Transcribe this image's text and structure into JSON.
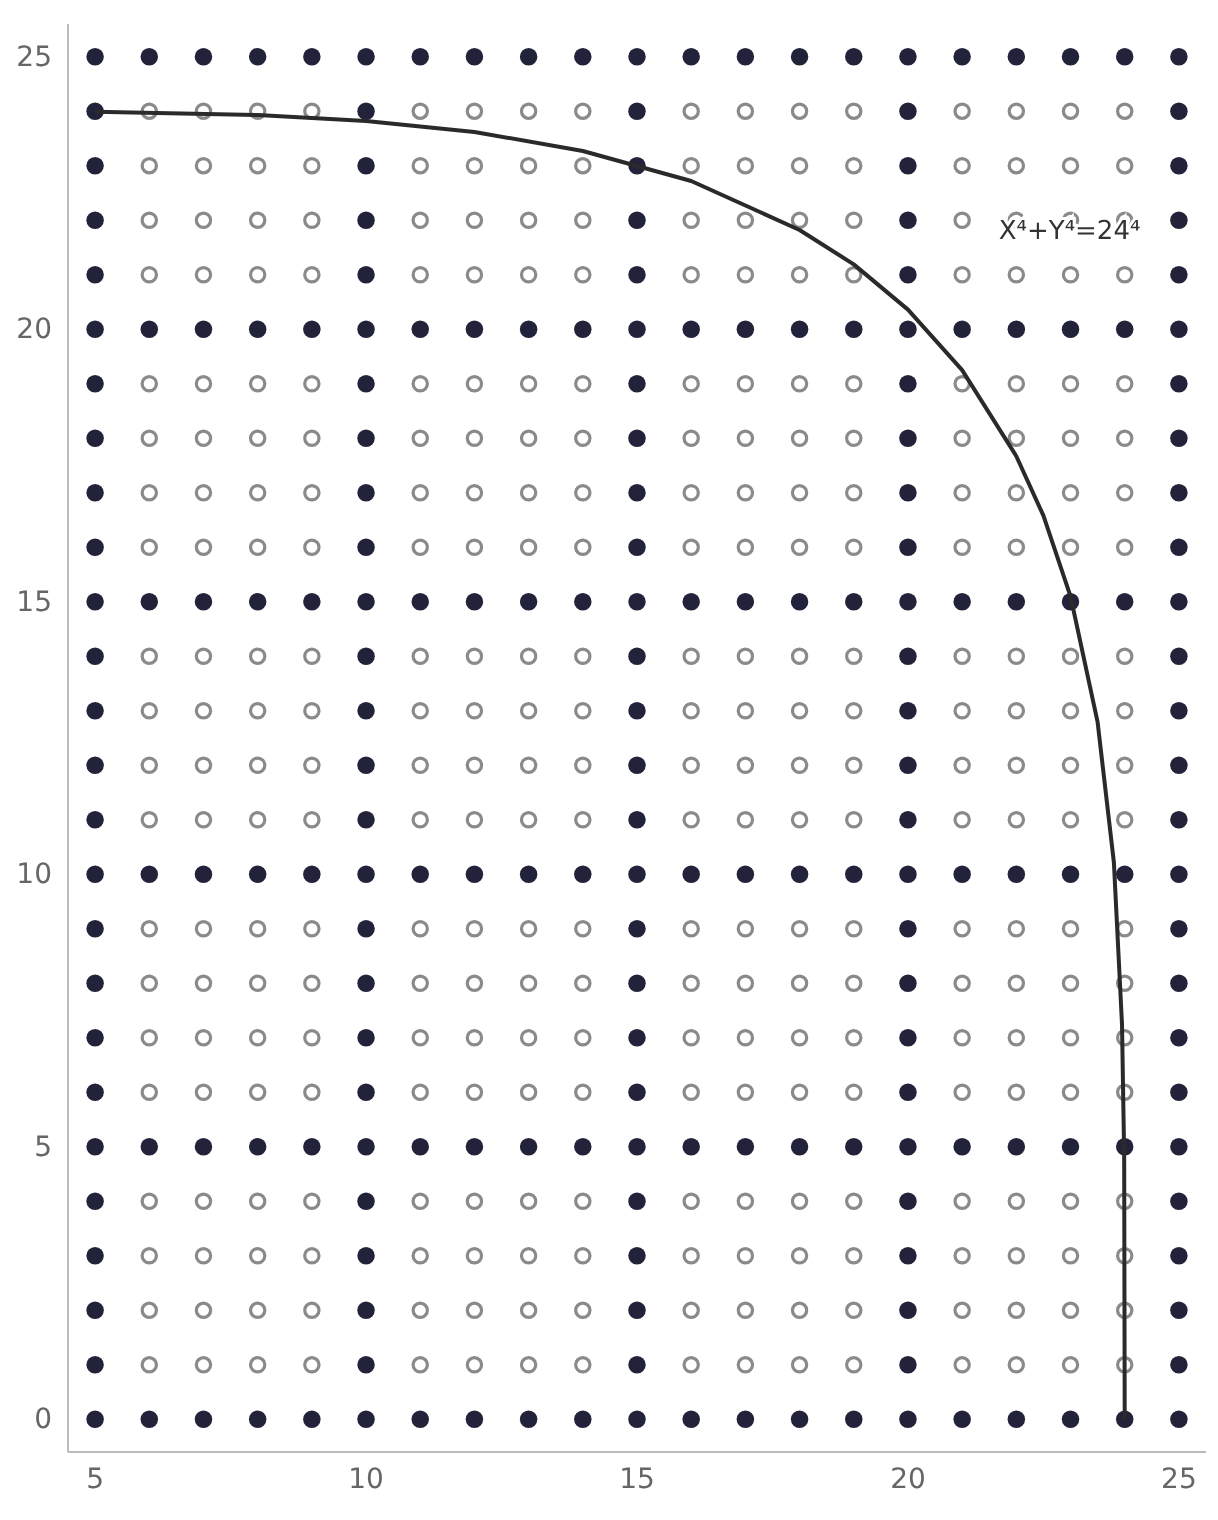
{
  "chart_data": {
    "type": "scatter",
    "xlim": [
      4.5,
      25.5
    ],
    "ylim": [
      -0.6,
      25.6
    ],
    "xticks": [
      5,
      10,
      15,
      20,
      25
    ],
    "yticks": [
      0,
      5,
      10,
      15,
      20,
      25
    ],
    "marker": "circle",
    "grid": false,
    "annotations": [
      "X⁴+Y⁴=24⁴"
    ],
    "series": [
      {
        "color": "#22223a",
        "x": [
          5,
          6,
          7,
          8,
          9,
          10,
          11,
          12,
          13,
          14,
          15,
          16,
          17,
          18,
          19,
          20,
          21,
          22,
          23,
          24,
          25,
          5,
          6,
          7,
          8,
          9,
          10,
          11,
          12,
          13,
          14,
          15,
          16,
          17,
          18,
          19,
          20,
          21,
          22,
          23,
          24,
          25,
          5,
          6,
          7,
          8,
          9,
          10,
          11,
          12,
          13,
          14,
          15,
          16,
          17,
          18,
          19,
          20,
          21,
          22,
          23,
          24,
          25,
          5,
          6,
          7,
          8,
          9,
          10,
          11,
          12,
          13,
          14,
          15,
          16,
          17,
          18,
          19,
          20,
          21,
          22,
          23,
          24,
          25,
          5,
          6,
          7,
          8,
          9,
          10,
          11,
          12,
          13,
          14,
          15,
          16,
          17,
          18,
          19,
          20,
          21,
          22,
          23,
          24,
          25,
          5,
          6,
          7,
          8,
          9,
          10,
          11,
          12,
          13,
          14,
          15,
          16,
          17,
          18,
          19,
          20,
          21,
          22,
          23,
          24,
          25,
          5,
          10,
          15,
          20,
          25,
          5,
          10,
          15,
          20,
          25,
          5,
          10,
          15,
          20,
          25,
          5,
          10,
          15,
          20,
          25,
          5,
          10,
          15,
          20,
          25,
          5,
          10,
          15,
          20,
          25,
          5,
          10,
          15,
          20,
          25,
          5,
          10,
          15,
          20,
          25,
          5,
          10,
          15,
          20,
          25,
          5,
          10,
          15,
          20,
          25,
          5,
          10,
          15,
          20,
          25,
          5,
          10,
          15,
          20,
          25,
          5,
          10,
          15,
          20,
          25,
          5,
          10,
          15,
          20,
          25,
          5,
          10,
          15,
          20,
          25,
          5,
          10,
          15,
          20,
          25,
          5,
          10,
          15,
          20,
          25,
          5,
          10,
          15,
          20,
          25,
          5,
          10,
          15,
          20,
          25,
          5,
          10,
          15,
          20,
          25
        ],
        "values": [
          0,
          0,
          0,
          0,
          0,
          0,
          0,
          0,
          0,
          0,
          0,
          0,
          0,
          0,
          0,
          0,
          0,
          0,
          0,
          0,
          0,
          5,
          5,
          5,
          5,
          5,
          5,
          5,
          5,
          5,
          5,
          5,
          5,
          5,
          5,
          5,
          5,
          5,
          5,
          5,
          5,
          5,
          10,
          10,
          10,
          10,
          10,
          10,
          10,
          10,
          10,
          10,
          10,
          10,
          10,
          10,
          10,
          10,
          10,
          10,
          10,
          10,
          10,
          15,
          15,
          15,
          15,
          15,
          15,
          15,
          15,
          15,
          15,
          15,
          15,
          15,
          15,
          15,
          15,
          15,
          15,
          15,
          15,
          15,
          20,
          20,
          20,
          20,
          20,
          20,
          20,
          20,
          20,
          20,
          20,
          20,
          20,
          20,
          20,
          20,
          20,
          20,
          20,
          20,
          20,
          25,
          25,
          25,
          25,
          25,
          25,
          25,
          25,
          25,
          25,
          25,
          25,
          25,
          25,
          25,
          25,
          25,
          25,
          25,
          25,
          25,
          1,
          1,
          1,
          1,
          1,
          2,
          2,
          2,
          2,
          2,
          3,
          3,
          3,
          3,
          3,
          4,
          4,
          4,
          4,
          4,
          6,
          6,
          6,
          6,
          6,
          7,
          7,
          7,
          7,
          7,
          8,
          8,
          8,
          8,
          8,
          9,
          9,
          9,
          9,
          9,
          11,
          11,
          11,
          11,
          11,
          12,
          12,
          12,
          12,
          12,
          13,
          13,
          13,
          13,
          13,
          14,
          14,
          14,
          14,
          14,
          16,
          16,
          16,
          16,
          16,
          17,
          17,
          17,
          17,
          17,
          18,
          18,
          18,
          18,
          18,
          19,
          19,
          19,
          19,
          19,
          21,
          21,
          21,
          21,
          21,
          22,
          22,
          22,
          22,
          22,
          23,
          23,
          23,
          23,
          23,
          24,
          24,
          24,
          24,
          24
        ]
      },
      {
        "color": "#8a8a8a",
        "x": [
          6,
          7,
          8,
          9,
          11,
          12,
          13,
          14,
          16,
          17,
          18,
          19,
          21,
          22,
          23,
          24,
          6,
          7,
          8,
          9,
          11,
          12,
          13,
          14,
          16,
          17,
          18,
          19,
          21,
          22,
          23,
          24,
          6,
          7,
          8,
          9,
          11,
          12,
          13,
          14,
          16,
          17,
          18,
          19,
          21,
          22,
          23,
          24,
          6,
          7,
          8,
          9,
          11,
          12,
          13,
          14,
          16,
          17,
          18,
          19,
          21,
          22,
          23,
          24,
          6,
          7,
          8,
          9,
          11,
          12,
          13,
          14,
          16,
          17,
          18,
          19,
          21,
          22,
          23,
          24,
          6,
          7,
          8,
          9,
          11,
          12,
          13,
          14,
          16,
          17,
          18,
          19,
          21,
          22,
          23,
          24,
          6,
          7,
          8,
          9,
          11,
          12,
          13,
          14,
          16,
          17,
          18,
          19,
          21,
          22,
          23,
          24,
          6,
          7,
          8,
          9,
          11,
          12,
          13,
          14,
          16,
          17,
          18,
          19,
          21,
          22,
          23,
          24,
          6,
          7,
          8,
          9,
          11,
          12,
          13,
          14,
          16,
          17,
          18,
          19,
          21,
          22,
          23,
          24,
          6,
          7,
          8,
          9,
          11,
          12,
          13,
          14,
          16,
          17,
          18,
          19,
          21,
          22,
          23,
          24,
          6,
          7,
          8,
          9,
          11,
          12,
          13,
          14,
          16,
          17,
          18,
          19,
          21,
          22,
          23,
          24,
          6,
          7,
          8,
          9,
          11,
          12,
          13,
          14,
          16,
          17,
          18,
          19,
          21,
          22,
          23,
          24,
          6,
          7,
          8,
          9,
          11,
          12,
          13,
          14,
          16,
          17,
          18,
          19,
          21,
          22,
          23,
          24,
          6,
          7,
          8,
          9,
          11,
          12,
          13,
          14,
          16,
          17,
          18,
          19,
          21,
          22,
          23,
          24,
          6,
          7,
          8,
          9,
          11,
          12,
          13,
          14,
          16,
          17,
          18,
          19,
          21,
          22,
          23,
          24,
          6,
          7,
          8,
          9,
          11,
          12,
          13,
          14,
          16,
          17,
          18,
          19,
          21,
          22,
          23,
          24,
          6,
          7,
          8,
          9,
          11,
          12,
          13,
          14,
          16,
          17,
          18,
          19,
          21,
          22,
          23,
          24,
          6,
          7,
          8,
          9,
          11,
          12,
          13,
          14,
          16,
          17,
          18,
          19,
          21,
          22,
          23,
          24,
          6,
          7,
          8,
          9,
          11,
          12,
          13,
          14,
          16,
          17,
          18,
          19,
          21,
          22,
          23,
          24,
          6,
          7,
          8,
          9,
          11,
          12,
          13,
          14,
          16,
          17,
          18,
          19,
          21,
          22,
          23,
          24
        ],
        "values": [
          1,
          1,
          1,
          1,
          1,
          1,
          1,
          1,
          1,
          1,
          1,
          1,
          1,
          1,
          1,
          1,
          2,
          2,
          2,
          2,
          2,
          2,
          2,
          2,
          2,
          2,
          2,
          2,
          2,
          2,
          2,
          2,
          3,
          3,
          3,
          3,
          3,
          3,
          3,
          3,
          3,
          3,
          3,
          3,
          3,
          3,
          3,
          3,
          4,
          4,
          4,
          4,
          4,
          4,
          4,
          4,
          4,
          4,
          4,
          4,
          4,
          4,
          4,
          4,
          6,
          6,
          6,
          6,
          6,
          6,
          6,
          6,
          6,
          6,
          6,
          6,
          6,
          6,
          6,
          6,
          7,
          7,
          7,
          7,
          7,
          7,
          7,
          7,
          7,
          7,
          7,
          7,
          7,
          7,
          7,
          7,
          8,
          8,
          8,
          8,
          8,
          8,
          8,
          8,
          8,
          8,
          8,
          8,
          8,
          8,
          8,
          8,
          9,
          9,
          9,
          9,
          9,
          9,
          9,
          9,
          9,
          9,
          9,
          9,
          9,
          9,
          9,
          9,
          11,
          11,
          11,
          11,
          11,
          11,
          11,
          11,
          11,
          11,
          11,
          11,
          11,
          11,
          11,
          11,
          12,
          12,
          12,
          12,
          12,
          12,
          12,
          12,
          12,
          12,
          12,
          12,
          12,
          12,
          12,
          12,
          13,
          13,
          13,
          13,
          13,
          13,
          13,
          13,
          13,
          13,
          13,
          13,
          13,
          13,
          13,
          13,
          14,
          14,
          14,
          14,
          14,
          14,
          14,
          14,
          14,
          14,
          14,
          14,
          14,
          14,
          14,
          14,
          16,
          16,
          16,
          16,
          16,
          16,
          16,
          16,
          16,
          16,
          16,
          16,
          16,
          16,
          16,
          16,
          17,
          17,
          17,
          17,
          17,
          17,
          17,
          17,
          17,
          17,
          17,
          17,
          17,
          17,
          17,
          17,
          18,
          18,
          18,
          18,
          18,
          18,
          18,
          18,
          18,
          18,
          18,
          18,
          18,
          18,
          18,
          18,
          19,
          19,
          19,
          19,
          19,
          19,
          19,
          19,
          19,
          19,
          19,
          19,
          19,
          19,
          19,
          19,
          21,
          21,
          21,
          21,
          21,
          21,
          21,
          21,
          21,
          21,
          21,
          21,
          21,
          21,
          21,
          21,
          22,
          22,
          22,
          22,
          22,
          22,
          22,
          22,
          22,
          22,
          22,
          22,
          22,
          22,
          22,
          22,
          23,
          23,
          23,
          23,
          23,
          23,
          23,
          23,
          23,
          23,
          23,
          23,
          23,
          23,
          23,
          23,
          24,
          24,
          24,
          24,
          24,
          24,
          24,
          24,
          24,
          24,
          24,
          24,
          24,
          24,
          24,
          24
        ]
      },
      {
        "type": "line",
        "color": "#2a2a2a",
        "marker": "none",
        "line_style": "solid",
        "x": [
          5,
          8,
          10,
          12,
          14,
          16,
          18,
          19,
          20,
          21,
          22,
          22.5,
          23,
          23.5,
          23.8,
          23.95,
          23.99,
          24
        ],
        "values": [
          23.99,
          23.93,
          23.82,
          23.62,
          23.27,
          22.72,
          21.82,
          21.19,
          20.36,
          19.25,
          17.67,
          16.58,
          15.1,
          12.79,
          10.22,
          7.25,
          4.85,
          0
        ]
      }
    ]
  }
}
